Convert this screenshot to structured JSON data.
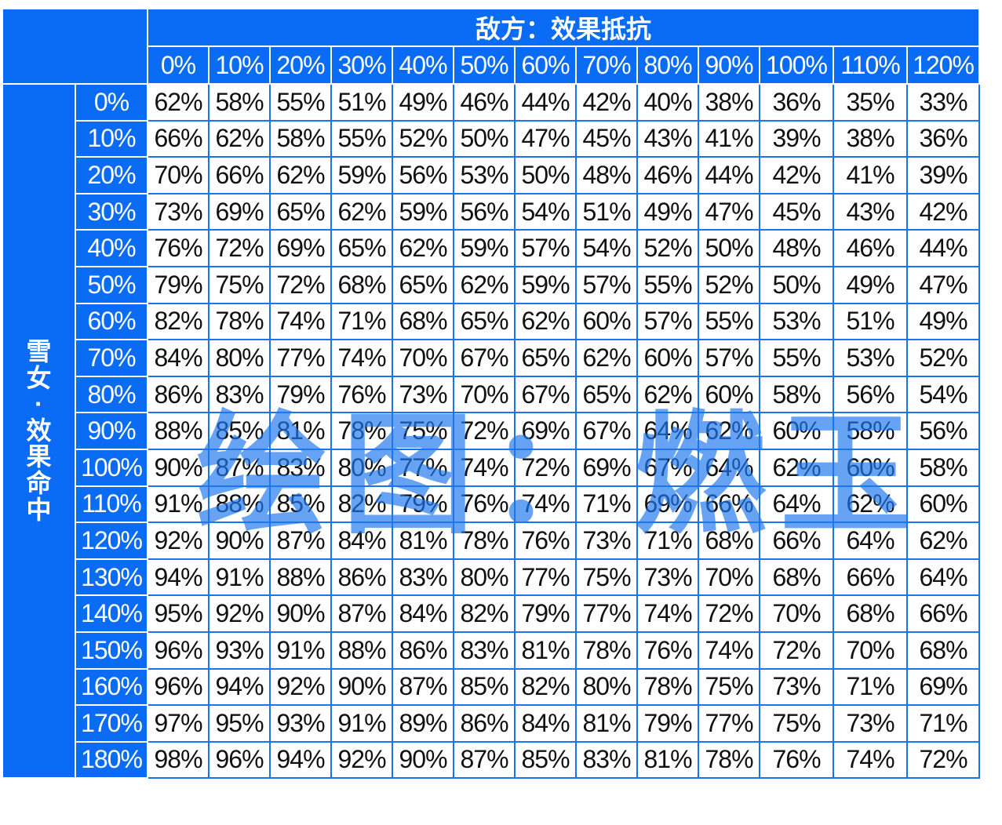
{
  "header": {
    "column_group_title": "敌方：效果抵抗",
    "row_group_title": "雪女·效果命中",
    "columns": [
      "0%",
      "10%",
      "20%",
      "30%",
      "40%",
      "50%",
      "60%",
      "70%",
      "80%",
      "90%",
      "100%",
      "110%",
      "120%"
    ]
  },
  "rows": [
    {
      "label": "0%",
      "values": [
        "62%",
        "58%",
        "55%",
        "51%",
        "49%",
        "46%",
        "44%",
        "42%",
        "40%",
        "38%",
        "36%",
        "35%",
        "33%"
      ]
    },
    {
      "label": "10%",
      "values": [
        "66%",
        "62%",
        "58%",
        "55%",
        "52%",
        "50%",
        "47%",
        "45%",
        "43%",
        "41%",
        "39%",
        "38%",
        "36%"
      ]
    },
    {
      "label": "20%",
      "values": [
        "70%",
        "66%",
        "62%",
        "59%",
        "56%",
        "53%",
        "50%",
        "48%",
        "46%",
        "44%",
        "42%",
        "41%",
        "39%"
      ]
    },
    {
      "label": "30%",
      "values": [
        "73%",
        "69%",
        "65%",
        "62%",
        "59%",
        "56%",
        "54%",
        "51%",
        "49%",
        "47%",
        "45%",
        "43%",
        "42%"
      ]
    },
    {
      "label": "40%",
      "values": [
        "76%",
        "72%",
        "69%",
        "65%",
        "62%",
        "59%",
        "57%",
        "54%",
        "52%",
        "50%",
        "48%",
        "46%",
        "44%"
      ]
    },
    {
      "label": "50%",
      "values": [
        "79%",
        "75%",
        "72%",
        "68%",
        "65%",
        "62%",
        "59%",
        "57%",
        "55%",
        "52%",
        "50%",
        "49%",
        "47%"
      ]
    },
    {
      "label": "60%",
      "values": [
        "82%",
        "78%",
        "74%",
        "71%",
        "68%",
        "65%",
        "62%",
        "60%",
        "57%",
        "55%",
        "53%",
        "51%",
        "49%"
      ]
    },
    {
      "label": "70%",
      "values": [
        "84%",
        "80%",
        "77%",
        "74%",
        "70%",
        "67%",
        "65%",
        "62%",
        "60%",
        "57%",
        "55%",
        "53%",
        "52%"
      ]
    },
    {
      "label": "80%",
      "values": [
        "86%",
        "83%",
        "79%",
        "76%",
        "73%",
        "70%",
        "67%",
        "65%",
        "62%",
        "60%",
        "58%",
        "56%",
        "54%"
      ]
    },
    {
      "label": "90%",
      "values": [
        "88%",
        "85%",
        "81%",
        "78%",
        "75%",
        "72%",
        "69%",
        "67%",
        "64%",
        "62%",
        "60%",
        "58%",
        "56%"
      ]
    },
    {
      "label": "100%",
      "values": [
        "90%",
        "87%",
        "83%",
        "80%",
        "77%",
        "74%",
        "72%",
        "69%",
        "67%",
        "64%",
        "62%",
        "60%",
        "58%"
      ]
    },
    {
      "label": "110%",
      "values": [
        "91%",
        "88%",
        "85%",
        "82%",
        "79%",
        "76%",
        "74%",
        "71%",
        "69%",
        "66%",
        "64%",
        "62%",
        "60%"
      ]
    },
    {
      "label": "120%",
      "values": [
        "92%",
        "90%",
        "87%",
        "84%",
        "81%",
        "78%",
        "76%",
        "73%",
        "71%",
        "68%",
        "66%",
        "64%",
        "62%"
      ]
    },
    {
      "label": "130%",
      "values": [
        "94%",
        "91%",
        "88%",
        "86%",
        "83%",
        "80%",
        "77%",
        "75%",
        "73%",
        "70%",
        "68%",
        "66%",
        "64%"
      ]
    },
    {
      "label": "140%",
      "values": [
        "95%",
        "92%",
        "90%",
        "87%",
        "84%",
        "82%",
        "79%",
        "77%",
        "74%",
        "72%",
        "70%",
        "68%",
        "66%"
      ]
    },
    {
      "label": "150%",
      "values": [
        "96%",
        "93%",
        "91%",
        "88%",
        "86%",
        "83%",
        "81%",
        "78%",
        "76%",
        "74%",
        "72%",
        "70%",
        "68%"
      ]
    },
    {
      "label": "160%",
      "values": [
        "96%",
        "94%",
        "92%",
        "90%",
        "87%",
        "85%",
        "82%",
        "80%",
        "78%",
        "75%",
        "73%",
        "71%",
        "69%"
      ]
    },
    {
      "label": "170%",
      "values": [
        "97%",
        "95%",
        "93%",
        "91%",
        "89%",
        "86%",
        "84%",
        "81%",
        "79%",
        "77%",
        "75%",
        "73%",
        "71%"
      ]
    },
    {
      "label": "180%",
      "values": [
        "98%",
        "96%",
        "94%",
        "92%",
        "90%",
        "87%",
        "85%",
        "83%",
        "81%",
        "78%",
        "76%",
        "74%",
        "72%"
      ]
    }
  ],
  "watermark": "绘图：燃玉",
  "colors": {
    "header_bg": "#0A6CF5",
    "grid": "#1A73F0",
    "watermark": "#4A90F0"
  }
}
